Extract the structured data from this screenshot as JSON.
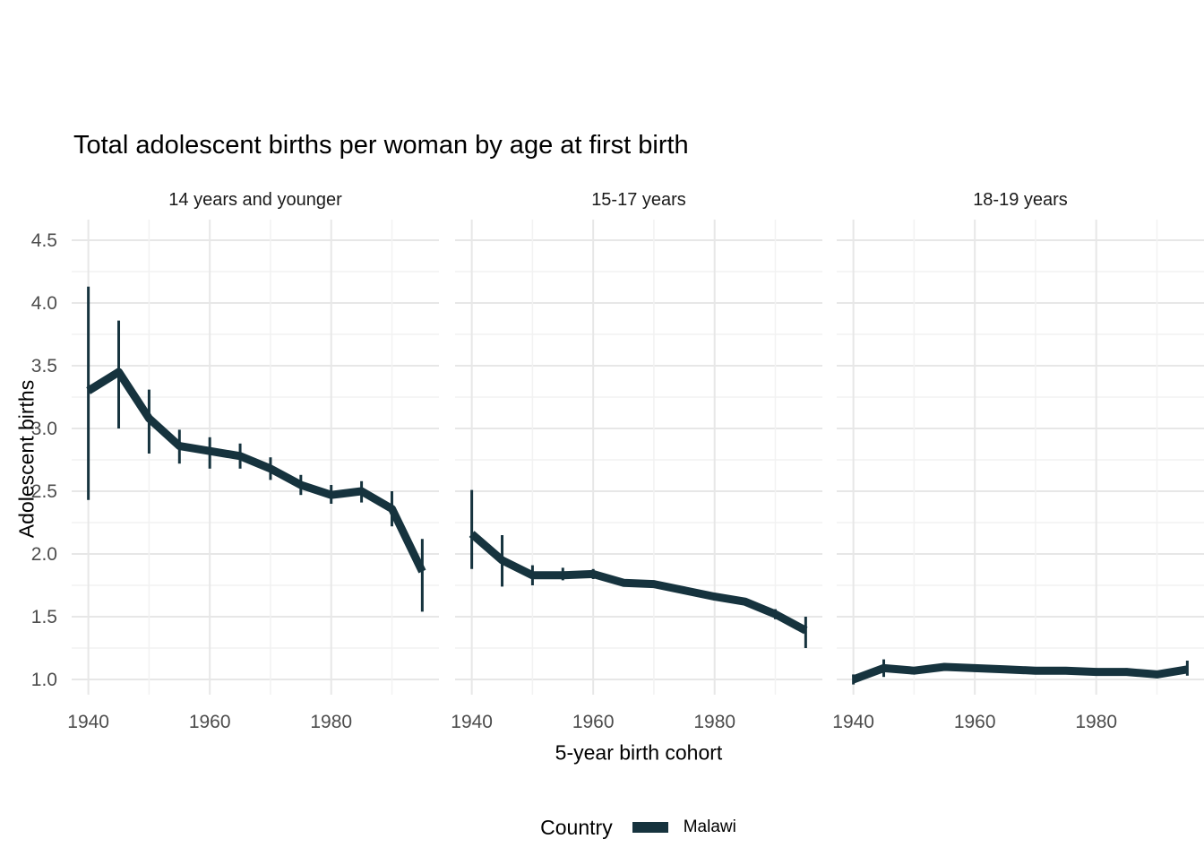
{
  "page": {
    "background": "#FFFFFF"
  },
  "chart_data": {
    "type": "line",
    "title": "Total adolescent births per woman by age at first birth",
    "xlabel": "5-year birth cohort",
    "ylabel": "Adolescent births",
    "grid": "major+minor, no panel border, white background",
    "legend": {
      "position": "bottom",
      "title": "Country",
      "items": [
        {
          "label": "Malawi",
          "color": "#16333E"
        }
      ]
    },
    "colors": {
      "line": "#16333E",
      "errorbar": "#16333E",
      "grid_major": "#E7E7E7",
      "grid_minor": "#F2F2F2",
      "tick_text": "#4D4D4D",
      "strip_text": "#1A1A1A",
      "title_text": "#000000"
    },
    "x": [
      1940,
      1945,
      1950,
      1955,
      1960,
      1965,
      1970,
      1975,
      1980,
      1985,
      1990,
      1995
    ],
    "x_tick_labels": [
      "1940",
      "1960",
      "1980"
    ],
    "x_ticks": [
      1940,
      1960,
      1980
    ],
    "x_minor": [
      1950,
      1970,
      1990
    ],
    "xlim": [
      1937.25,
      1997.75
    ],
    "y_tick_labels": [
      "1.0",
      "1.5",
      "2.0",
      "2.5",
      "3.0",
      "3.5",
      "4.0",
      "4.5"
    ],
    "y_ticks": [
      1.0,
      1.5,
      2.0,
      2.5,
      3.0,
      3.5,
      4.0,
      4.5
    ],
    "y_minor": [
      1.25,
      1.75,
      2.25,
      2.75,
      3.25,
      3.75,
      4.25
    ],
    "ylim": [
      0.88,
      4.66
    ],
    "panels": [
      {
        "label": "14 years and younger",
        "series": {
          "name": "Malawi",
          "values": [
            3.3,
            3.45,
            3.08,
            2.86,
            2.82,
            2.78,
            2.68,
            2.55,
            2.47,
            2.5,
            2.36,
            1.86
          ],
          "lower": [
            2.43,
            3.0,
            2.8,
            2.72,
            2.68,
            2.68,
            2.59,
            2.47,
            2.4,
            2.41,
            2.22,
            1.54
          ],
          "upper": [
            4.13,
            3.86,
            3.31,
            2.99,
            2.93,
            2.88,
            2.77,
            2.63,
            2.55,
            2.58,
            2.5,
            2.12
          ]
        }
      },
      {
        "label": "15-17 years",
        "series": {
          "name": "Malawi",
          "values": [
            2.16,
            1.95,
            1.83,
            1.83,
            1.84,
            1.77,
            1.76,
            1.71,
            1.66,
            1.62,
            1.52,
            1.39
          ],
          "lower": [
            1.88,
            1.74,
            1.75,
            1.79,
            1.8,
            1.74,
            1.73,
            1.68,
            1.63,
            1.59,
            1.48,
            1.25
          ],
          "upper": [
            2.51,
            2.15,
            1.91,
            1.89,
            1.88,
            1.8,
            1.79,
            1.74,
            1.69,
            1.65,
            1.56,
            1.5
          ]
        }
      },
      {
        "label": "18-19 years",
        "series": {
          "name": "Malawi",
          "values": [
            1.0,
            1.09,
            1.07,
            1.1,
            1.09,
            1.08,
            1.07,
            1.07,
            1.06,
            1.06,
            1.04,
            1.08
          ],
          "lower": [
            0.96,
            1.02,
            1.04,
            1.07,
            1.06,
            1.05,
            1.04,
            1.04,
            1.03,
            1.03,
            1.01,
            1.03
          ],
          "upper": [
            1.04,
            1.16,
            1.1,
            1.13,
            1.12,
            1.11,
            1.1,
            1.1,
            1.09,
            1.09,
            1.07,
            1.15
          ]
        }
      }
    ]
  }
}
